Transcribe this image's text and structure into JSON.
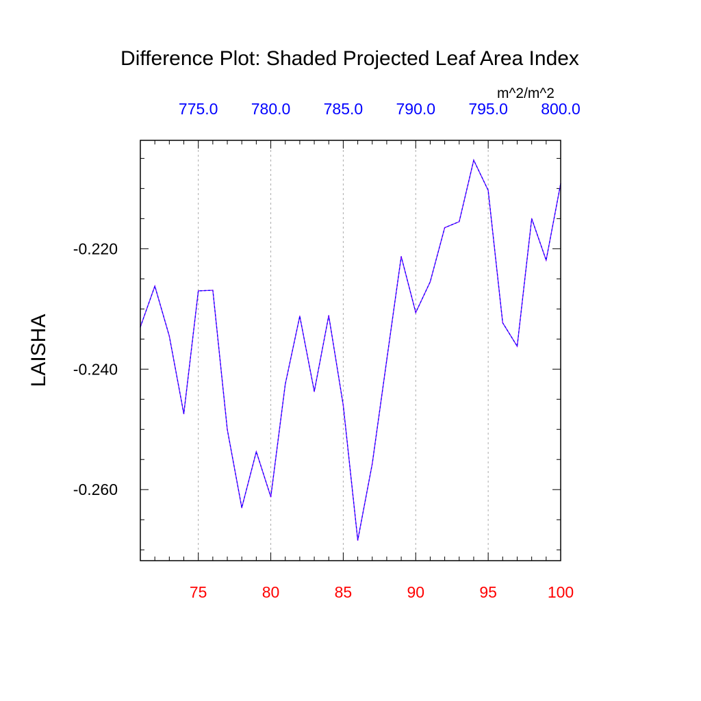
{
  "chart_data": {
    "type": "line",
    "title": "Difference Plot: Shaded Projected Leaf Area Index",
    "units": "m^2/m^2",
    "ylabel": "LAISHA",
    "xlabel": "",
    "xlim": [
      71,
      100
    ],
    "ylim": [
      -0.2718,
      -0.202
    ],
    "grid": "x-only dashed at major ticks",
    "x_ticks": [
      75,
      80,
      85,
      90,
      95,
      100
    ],
    "x_tick_labels": [
      "75",
      "80",
      "85",
      "90",
      "95",
      "100"
    ],
    "x_minor_step": 1,
    "top_axis": {
      "ticks_at_x": [
        75,
        80,
        85,
        90,
        95,
        100
      ],
      "labels": [
        "775.0",
        "780.0",
        "785.0",
        "790.0",
        "795.0",
        "800.0"
      ]
    },
    "y_ticks": [
      -0.22,
      -0.24,
      -0.26
    ],
    "y_tick_labels": [
      "-0.220",
      "-0.240",
      "-0.260"
    ],
    "y_minor_step": 0.005,
    "x": [
      71,
      72,
      73,
      74,
      75,
      76,
      77,
      78,
      79,
      80,
      81,
      82,
      83,
      84,
      85,
      86,
      87,
      88,
      89,
      90,
      91,
      92,
      93,
      94,
      95,
      96,
      97,
      98,
      99,
      100
    ],
    "series": [
      {
        "values": [
          -0.233,
          -0.2262,
          -0.2345,
          -0.2474,
          -0.227,
          -0.2269,
          -0.25,
          -0.263,
          -0.2537,
          -0.2612,
          -0.2425,
          -0.2312,
          -0.2437,
          -0.2311,
          -0.246,
          -0.2684,
          -0.2557,
          -0.2385,
          -0.2213,
          -0.2306,
          -0.2255,
          -0.2165,
          -0.2155,
          -0.2053,
          -0.2103,
          -0.2323,
          -0.2362,
          -0.215,
          -0.2219,
          -0.2092
        ],
        "color": "#7b00ff",
        "dash_color": "#0000ff"
      }
    ],
    "colors": {
      "bottom_tick_labels": "#ff0000",
      "top_tick_labels": "#0000ff",
      "left_tick_labels": "#000000"
    }
  }
}
